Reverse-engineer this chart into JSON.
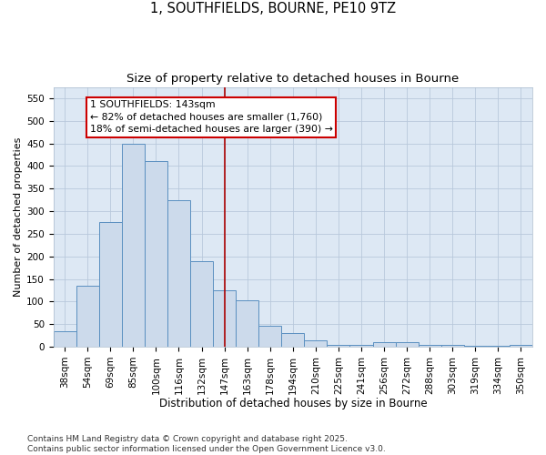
{
  "title1": "1, SOUTHFIELDS, BOURNE, PE10 9TZ",
  "title2": "Size of property relative to detached houses in Bourne",
  "xlabel": "Distribution of detached houses by size in Bourne",
  "ylabel": "Number of detached properties",
  "categories": [
    "38sqm",
    "54sqm",
    "69sqm",
    "85sqm",
    "100sqm",
    "116sqm",
    "132sqm",
    "147sqm",
    "163sqm",
    "178sqm",
    "194sqm",
    "210sqm",
    "225sqm",
    "241sqm",
    "256sqm",
    "272sqm",
    "288sqm",
    "303sqm",
    "319sqm",
    "334sqm",
    "350sqm"
  ],
  "values": [
    35,
    135,
    275,
    450,
    410,
    325,
    190,
    125,
    103,
    46,
    31,
    15,
    5,
    5,
    10,
    10,
    4,
    3,
    2,
    2,
    3
  ],
  "bar_color": "#ccdaeb",
  "bar_edge_color": "#5a8fc0",
  "vline_x_idx": 7,
  "vline_color": "#aa0000",
  "annotation_line1": "1 SOUTHFIELDS: 143sqm",
  "annotation_line2": "← 82% of detached houses are smaller (1,760)",
  "annotation_line3": "18% of semi-detached houses are larger (390) →",
  "annotation_box_color": "#ffffff",
  "annotation_box_edge_color": "#cc0000",
  "ylim": [
    0,
    575
  ],
  "yticks": [
    0,
    50,
    100,
    150,
    200,
    250,
    300,
    350,
    400,
    450,
    500,
    550
  ],
  "grid_color": "#b8c8dc",
  "background_color": "#dde8f4",
  "footer": "Contains HM Land Registry data © Crown copyright and database right 2025.\nContains public sector information licensed under the Open Government Licence v3.0.",
  "title_fontsize": 10.5,
  "subtitle_fontsize": 9.5,
  "tick_fontsize": 7.5,
  "ylabel_fontsize": 8,
  "xlabel_fontsize": 8.5,
  "annotation_fontsize": 7.8,
  "footer_fontsize": 6.5
}
